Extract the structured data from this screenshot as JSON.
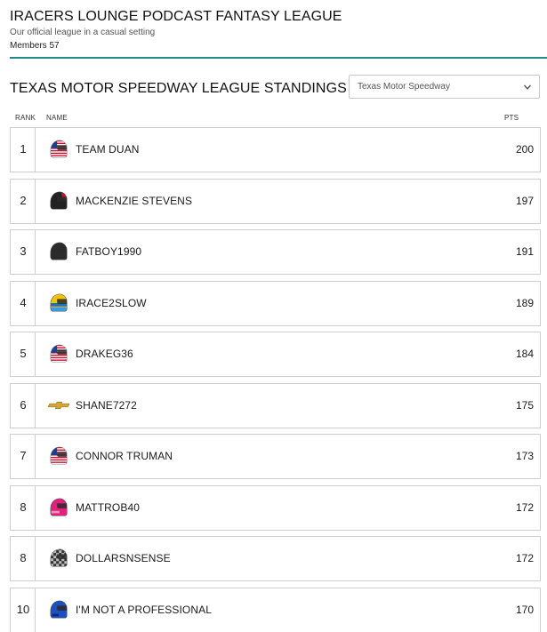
{
  "league": {
    "title": "IRACERS LOUNGE PODCAST FANTASY LEAGUE",
    "subtitle": "Our official league in a casual setting",
    "members": "Members 57"
  },
  "standings": {
    "title": "TEXAS MOTOR SPEEDWAY LEAGUE STANDINGS",
    "selected_race": "Texas Motor Speedway",
    "columns": {
      "rank": "RANK",
      "name": "NAME",
      "pts": "PTS"
    },
    "rows": [
      {
        "rank": "1",
        "name": "TEAM DUAN",
        "pts": "200",
        "helmet": "usa-flag-helmet-icon"
      },
      {
        "rank": "2",
        "name": "MACKENZIE STEVENS",
        "pts": "197",
        "helmet": "black-red-helmet-icon"
      },
      {
        "rank": "3",
        "name": "FATBOY1990",
        "pts": "191",
        "helmet": "black-helmet-icon"
      },
      {
        "rank": "4",
        "name": "IRACE2SLOW",
        "pts": "189",
        "helmet": "yellow-blue-helmet-icon"
      },
      {
        "rank": "5",
        "name": "DRAKEG36",
        "pts": "184",
        "helmet": "usa-flag-helmet-icon"
      },
      {
        "rank": "6",
        "name": "SHANE7272",
        "pts": "175",
        "helmet": "chevrolet-bowtie-icon"
      },
      {
        "rank": "7",
        "name": "CONNOR TRUMAN",
        "pts": "173",
        "helmet": "usa-flag-helmet-icon"
      },
      {
        "rank": "8",
        "name": "MATTROB40",
        "pts": "172",
        "helmet": "pink-helmet-icon"
      },
      {
        "rank": "8",
        "name": "DOLLARSNSENSE",
        "pts": "172",
        "helmet": "checkered-helmet-icon"
      },
      {
        "rank": "10",
        "name": "I'M NOT A PROFESSIONAL",
        "pts": "170",
        "helmet": "blue-helmet-icon"
      }
    ]
  },
  "colors": {
    "accent": "#1f8a8a",
    "border": "#cfcfcf"
  }
}
